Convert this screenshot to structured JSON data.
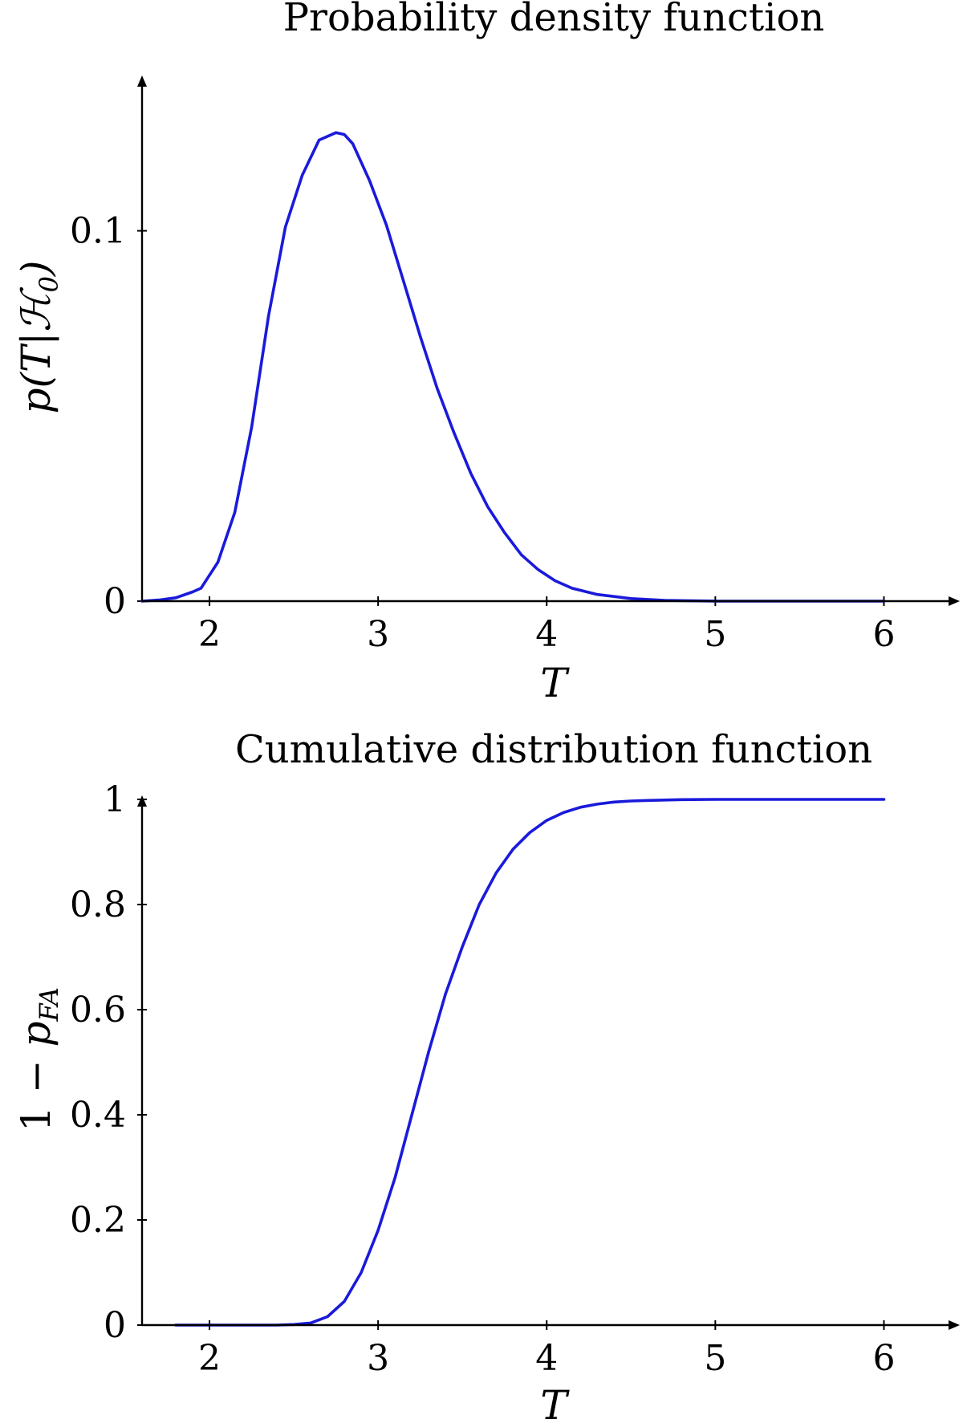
{
  "colors": {
    "series": "#1a1adb",
    "axis": "#000000"
  },
  "chart_data": [
    {
      "type": "line",
      "title": "Probability density function",
      "xlabel": "T",
      "ylabel": {
        "prefix": "p(T|",
        "script": "ℋ",
        "sub": "0",
        "suffix": ")"
      },
      "xlim": [
        1.6,
        6.45
      ],
      "ylim": [
        0,
        0.14
      ],
      "xticks": [
        2,
        3,
        4,
        5,
        6
      ],
      "yticks": [
        0,
        0.1
      ],
      "ytick_labels": [
        "0",
        "0.1"
      ],
      "grid": false,
      "series": [
        {
          "x": [
            1.6,
            1.7,
            1.8,
            1.9,
            1.95,
            2.05,
            2.15,
            2.25,
            2.35,
            2.45,
            2.55,
            2.65,
            2.75,
            2.8,
            2.85,
            2.95,
            3.05,
            3.15,
            3.25,
            3.35,
            3.45,
            3.55,
            3.65,
            3.75,
            3.85,
            3.95,
            4.05,
            4.15,
            4.3,
            4.5,
            4.7,
            5.0,
            5.5,
            6.0
          ],
          "y": [
            0.0,
            0.0003,
            0.0009,
            0.0025,
            0.0035,
            0.0105,
            0.024,
            0.047,
            0.077,
            0.101,
            0.115,
            0.1245,
            0.1265,
            0.126,
            0.1235,
            0.1135,
            0.1015,
            0.0865,
            0.0715,
            0.0575,
            0.0455,
            0.0345,
            0.0255,
            0.0185,
            0.0125,
            0.0085,
            0.0055,
            0.0035,
            0.0018,
            0.0007,
            0.0002,
            0.0,
            0.0,
            0.0
          ]
        }
      ]
    },
    {
      "type": "line",
      "title": "Cumulative distribution function",
      "xlabel": "T",
      "ylabel": {
        "prefix": "1 − ",
        "var": "p",
        "sub": "FA"
      },
      "xlim": [
        1.6,
        6.45
      ],
      "ylim": [
        0,
        1
      ],
      "xticks": [
        2,
        3,
        4,
        5,
        6
      ],
      "yticks": [
        0,
        0.2,
        0.4,
        0.6,
        0.8,
        1
      ],
      "ytick_labels": [
        "0",
        "0.2",
        "0.4",
        "0.6",
        "0.8",
        "1"
      ],
      "grid": false,
      "series": [
        {
          "x": [
            1.8,
            2.0,
            2.2,
            2.4,
            2.5,
            2.6,
            2.7,
            2.8,
            2.9,
            3.0,
            3.1,
            3.2,
            3.3,
            3.4,
            3.5,
            3.6,
            3.7,
            3.8,
            3.9,
            4.0,
            4.1,
            4.2,
            4.3,
            4.4,
            4.5,
            4.6,
            4.8,
            5.0,
            5.5,
            6.0
          ],
          "y": [
            0.0,
            0.0,
            0.0,
            0.0,
            0.001,
            0.004,
            0.016,
            0.045,
            0.1,
            0.18,
            0.28,
            0.4,
            0.52,
            0.63,
            0.72,
            0.8,
            0.86,
            0.905,
            0.937,
            0.96,
            0.975,
            0.985,
            0.991,
            0.995,
            0.997,
            0.998,
            0.9995,
            1.0,
            1.0,
            1.0
          ]
        }
      ]
    }
  ]
}
